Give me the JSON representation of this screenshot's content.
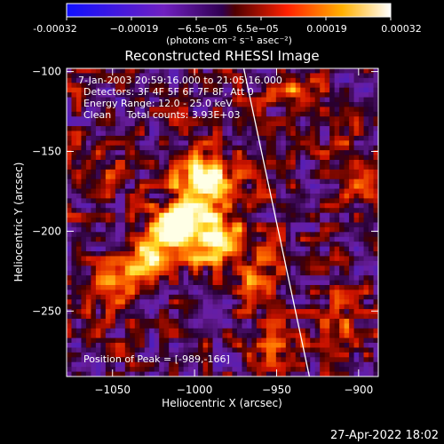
{
  "chart_data": {
    "type": "heatmap",
    "title": "Reconstructed RHESSI Image",
    "xlabel": "Heliocentric X (arcsec)",
    "ylabel": "Heliocentric Y (arcsec)",
    "xlim": [
      -1078,
      -888
    ],
    "ylim": [
      -291,
      -98
    ],
    "x_ticks": [
      -1050,
      -1000,
      -950,
      -900
    ],
    "x_tick_labels": [
      "−1050",
      "−1000",
      "−950",
      "−900"
    ],
    "y_ticks": [
      -250,
      -200,
      -150,
      -100
    ],
    "y_tick_labels": [
      "−250",
      "−200",
      "−150",
      "−100"
    ],
    "colorbar": {
      "range": [
        -0.00032,
        0.00032
      ],
      "tick_labels": [
        "-0.00032",
        "−0.00019",
        "−6.5e−05",
        "6.5e−05",
        "0.00019",
        "0.00032"
      ],
      "unit_label": "(photons cm⁻² s⁻¹ asec⁻²)",
      "colors": [
        "#1010ff",
        "#7020c0",
        "#a00000",
        "#ff3000",
        "#ffa000",
        "#ffff90",
        "#ffffff"
      ]
    },
    "annotations": [
      "7-Jan-2003 20:59:16.000 to 21:05:16.000",
      "Detectors: 3F 4F 5F 6F 7F 8F, Att 0",
      "Energy Range: 12.0 - 25.0 keV",
      "Clean     Total counts: 3.93E+03"
    ],
    "peak_label": "Position of Peak = [-989,-166]",
    "peak": [
      -989,
      -166
    ],
    "sources": [
      {
        "x": -994,
        "y": -170,
        "amp": 1.0
      },
      {
        "x": -1010,
        "y": -198,
        "amp": 0.85
      },
      {
        "x": -985,
        "y": -205,
        "amp": 0.75
      },
      {
        "x": -1025,
        "y": -215,
        "amp": 0.5
      },
      {
        "x": -1045,
        "y": -232,
        "amp": 0.4
      },
      {
        "x": -962,
        "y": -230,
        "amp": 0.35
      },
      {
        "x": -1060,
        "y": -160,
        "amp": 0.3
      },
      {
        "x": -935,
        "y": -112,
        "amp": 0.35
      },
      {
        "x": -905,
        "y": -160,
        "amp": 0.3
      },
      {
        "x": -910,
        "y": -255,
        "amp": 0.3
      },
      {
        "x": -950,
        "y": -280,
        "amp": 0.25
      }
    ],
    "limb_line": [
      [
        -970,
        -98
      ],
      [
        -930,
        -291
      ]
    ],
    "grid": false
  },
  "footer": {
    "date_label": "27-Apr-2022 18:02"
  }
}
